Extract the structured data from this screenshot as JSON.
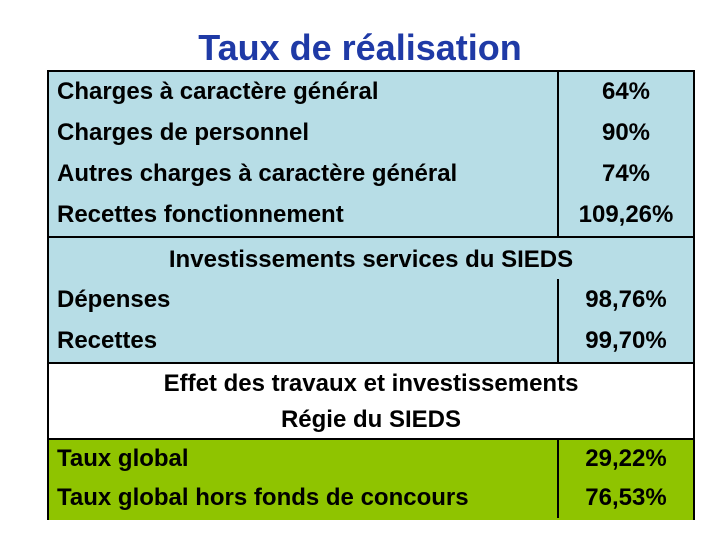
{
  "title": "Taux de réalisation",
  "section1": {
    "rows": [
      {
        "label": "Charges à caractère général",
        "value": "64%"
      },
      {
        "label": "Charges de personnel",
        "value": "90%"
      },
      {
        "label": "Autres charges à caractère général",
        "value": "74%"
      },
      {
        "label": "Recettes fonctionnement",
        "value": "109,26%"
      }
    ]
  },
  "section2": {
    "header": "Investissements services du SIEDS",
    "rows": [
      {
        "label": "Dépenses",
        "value": "98,76%"
      },
      {
        "label": "Recettes",
        "value": "99,70%"
      }
    ]
  },
  "section3": {
    "header_line1": "Effet des travaux et investissements",
    "header_line2": "Régie du SIEDS",
    "rows": [
      {
        "label": "Taux global",
        "value": "29,22%"
      },
      {
        "label": "Taux global hors fonds de concours",
        "value": "76,53%"
      }
    ]
  },
  "colors": {
    "title": "#1f3aa6",
    "blue_fill": "#b7dde6",
    "green_fill": "#8fc400"
  }
}
